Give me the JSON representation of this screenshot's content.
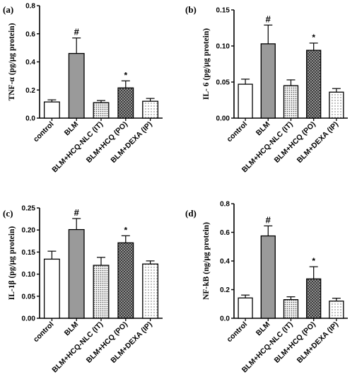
{
  "fills": {
    "white": "#ffffff",
    "solid": "#9a9a9a",
    "dots_dense": "#b5b5b5",
    "crosshatch": "#6e6e6e",
    "dots_sparse": "#c8c8c8"
  },
  "chart_data": [
    {
      "panel": "(a)",
      "type": "bar",
      "ylabel": "TNF-α (pg/μg protein)",
      "categories": [
        "control",
        "BLM",
        "BLM+HCQ-NLC (IT)",
        "BLM+HCQ (PO)",
        "BLM+DEXA (IP)"
      ],
      "values": [
        0.115,
        0.46,
        0.11,
        0.215,
        0.12
      ],
      "errors": [
        0.015,
        0.11,
        0.015,
        0.05,
        0.02
      ],
      "fills": [
        "white",
        "solid",
        "dots_dense",
        "crosshatch",
        "dots_sparse"
      ],
      "annotations": [
        "",
        "#",
        "",
        "*",
        ""
      ],
      "ylim": [
        0,
        0.8
      ],
      "yticks": [
        0,
        0.2,
        0.4,
        0.6,
        0.8
      ],
      "ytick_labels": [
        "0.0",
        "0.2",
        "0.4",
        "0.6",
        "0.8"
      ]
    },
    {
      "panel": "(b)",
      "type": "bar",
      "ylabel": "IL- 6 (pg/μg protein)",
      "categories": [
        "control",
        "BLM",
        "BLM+HCQ-NLC (IT)",
        "BLM+HCQ (PO)",
        "BLM+DEXA (IP)"
      ],
      "values": [
        0.047,
        0.103,
        0.045,
        0.094,
        0.036
      ],
      "errors": [
        0.007,
        0.026,
        0.008,
        0.01,
        0.005
      ],
      "fills": [
        "white",
        "solid",
        "dots_dense",
        "crosshatch",
        "dots_sparse"
      ],
      "annotations": [
        "",
        "#",
        "",
        "*",
        ""
      ],
      "ylim": [
        0,
        0.15
      ],
      "yticks": [
        0,
        0.05,
        0.1,
        0.15
      ],
      "ytick_labels": [
        "0.00",
        "0.05",
        "0.10",
        "0.15"
      ]
    },
    {
      "panel": "(c)",
      "type": "bar",
      "ylabel": "IL-1β (pg/μg protein)",
      "categories": [
        "control",
        "BLM",
        "BLM+HCQ-NLC (IT)",
        "BLM+HCQ (PO)",
        "BLM+DEXA (IP)"
      ],
      "values": [
        0.134,
        0.201,
        0.12,
        0.171,
        0.123
      ],
      "errors": [
        0.018,
        0.025,
        0.018,
        0.016,
        0.007
      ],
      "fills": [
        "white",
        "solid",
        "dots_dense",
        "crosshatch",
        "dots_sparse"
      ],
      "annotations": [
        "",
        "#",
        "",
        "*",
        ""
      ],
      "ylim": [
        0,
        0.25
      ],
      "yticks": [
        0,
        0.05,
        0.1,
        0.15,
        0.2,
        0.25
      ],
      "ytick_labels": [
        "0.00",
        "0.05",
        "0.10",
        "0.15",
        "0.20",
        "0.25"
      ]
    },
    {
      "panel": "(d)",
      "type": "bar",
      "ylabel": "NF-kB (ng/μg protein)",
      "categories": [
        "control",
        "BLM",
        "BLM+HCQ-NLC (IT)",
        "BLM+HCQ (PO)",
        "BLM+DEXA (IP)"
      ],
      "values": [
        0.142,
        0.575,
        0.13,
        0.275,
        0.12
      ],
      "errors": [
        0.02,
        0.07,
        0.02,
        0.085,
        0.02
      ],
      "fills": [
        "white",
        "solid",
        "dots_dense",
        "crosshatch",
        "dots_sparse"
      ],
      "annotations": [
        "",
        "#",
        "",
        "*",
        ""
      ],
      "ylim": [
        0,
        0.8
      ],
      "yticks": [
        0,
        0.2,
        0.4,
        0.6,
        0.8
      ],
      "ytick_labels": [
        "0.0",
        "0.2",
        "0.4",
        "0.6",
        "0.8"
      ]
    }
  ]
}
